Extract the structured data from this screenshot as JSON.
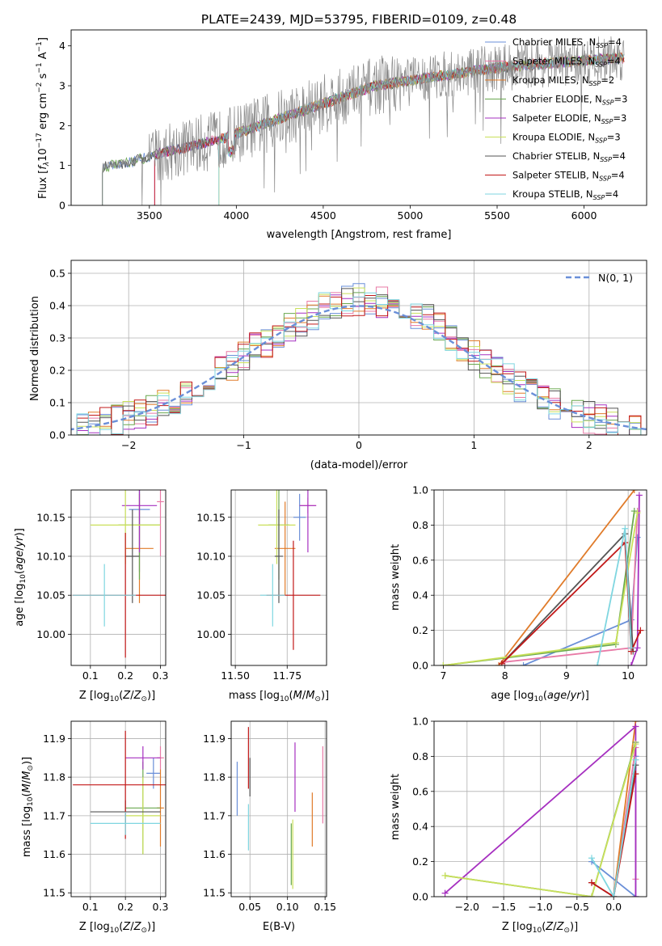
{
  "colors": {
    "Chabrier MILES": "#6a8fd8",
    "Salpeter MILES": "#e87aa6",
    "Kroupa MILES": "#e07b2a",
    "Chabrier ELODIE": "#6aa84f",
    "Salpeter ELODIE": "#a630c0",
    "Kroupa ELODIE": "#c9e05a",
    "Chabrier STELIB": "#555555",
    "Salpeter STELIB": "#c21818",
    "Kroupa STELIB": "#7fd6e0",
    "gaussian": "#6a8fd8"
  },
  "chart_data": [
    {
      "id": "spectrum",
      "type": "line",
      "title": "PLATE=2439, MJD=53795, FIBERID=0109, z=0.48",
      "xlabel": "wavelength [Angstrom, rest frame]",
      "ylabel": "Flux [fλ10⁻¹⁷ erg cm⁻² s⁻¹ A⁻¹]",
      "xlim": [
        3050,
        6360
      ],
      "ylim": [
        0,
        4.4
      ],
      "x_ticks": [
        "3500",
        "4000",
        "4500",
        "5000",
        "5500",
        "6000"
      ],
      "y_ticks": [
        "0",
        "1",
        "2",
        "3",
        "4"
      ],
      "grid": false,
      "legend_position": "top-right",
      "legend": [
        {
          "name": "Chabrier MILES, N",
          "sub": "SSP",
          "tail": "=4"
        },
        {
          "name": "Salpeter MILES, N",
          "sub": "SSP",
          "tail": "=4"
        },
        {
          "name": "Kroupa MILES, N",
          "sub": "SSP",
          "tail": "=2"
        },
        {
          "name": "Chabrier ELODIE, N",
          "sub": "SSP",
          "tail": "=3"
        },
        {
          "name": "Salpeter ELODIE, N",
          "sub": "SSP",
          "tail": "=3"
        },
        {
          "name": "Kroupa ELODIE, N",
          "sub": "SSP",
          "tail": "=3"
        },
        {
          "name": "Chabrier STELIB, N",
          "sub": "SSP",
          "tail": "=4"
        },
        {
          "name": "Salpeter STELIB, N",
          "sub": "SSP",
          "tail": "=4"
        },
        {
          "name": "Kroupa STELIB, N",
          "sub": "SSP",
          "tail": "=4"
        }
      ],
      "observed_trend": {
        "x": [
          3230,
          3400,
          3600,
          3900,
          4200,
          4500,
          4800,
          5100,
          5500,
          5900,
          6230
        ],
        "y": [
          0.95,
          1.1,
          1.35,
          1.65,
          2.1,
          2.55,
          3.0,
          3.2,
          3.45,
          3.6,
          3.7
        ]
      },
      "model_starts": [
        3230,
        3530,
        3900,
        3230,
        3530,
        3900,
        3230,
        3530,
        3900
      ]
    },
    {
      "id": "residuals",
      "type": "line",
      "xlabel": "(data-model)/error",
      "ylabel": "Normed distribution",
      "xlim": [
        -2.5,
        2.5
      ],
      "ylim": [
        0,
        0.54
      ],
      "x_ticks": [
        "−2",
        "−1",
        "0",
        "1",
        "2"
      ],
      "y_ticks": [
        "0.0",
        "0.1",
        "0.2",
        "0.3",
        "0.4",
        "0.5"
      ],
      "grid": true,
      "legend_position": "top-right",
      "gaussian_label": "N(0, 1)"
    },
    {
      "id": "age_vs_Z",
      "type": "scatter",
      "xlabel": "Z [log10(Z/Z⊙)]",
      "ylabel": "age  [log10(age/yr)]",
      "xlim": [
        0.045,
        0.315
      ],
      "ylim": [
        9.96,
        10.185
      ],
      "x_ticks": [
        "0.1",
        "0.2",
        "0.3"
      ],
      "y_ticks": [
        "10.00",
        "10.05",
        "10.10",
        "10.15"
      ],
      "points": [
        {
          "model": "Chabrier MILES",
          "x": 0.24,
          "y": 10.16,
          "xerr": 0.03,
          "yerr": 0.08
        },
        {
          "model": "Salpeter MILES",
          "x": 0.3,
          "y": 10.17,
          "xerr": 0.01,
          "yerr": 0.07
        },
        {
          "model": "Kroupa MILES",
          "x": 0.24,
          "y": 10.11,
          "xerr": 0.04,
          "yerr": 0.07
        },
        {
          "model": "Chabrier ELODIE",
          "x": 0.24,
          "y": 10.14,
          "xerr": 0.06,
          "yerr": 0.07
        },
        {
          "model": "Salpeter ELODIE",
          "x": 0.24,
          "y": 10.165,
          "xerr": 0.05,
          "yerr": 0.06
        },
        {
          "model": "Kroupa ELODIE",
          "x": 0.2,
          "y": 10.14,
          "xerr": 0.1,
          "yerr": 0.05
        },
        {
          "model": "Chabrier STELIB",
          "x": 0.22,
          "y": 10.1,
          "xerr": 0.02,
          "yerr": 0.06
        },
        {
          "model": "Salpeter STELIB",
          "x": 0.2,
          "y": 10.05,
          "xerr": 0.15,
          "yerr": 0.08
        },
        {
          "model": "Kroupa STELIB",
          "x": 0.14,
          "y": 10.05,
          "xerr": 0.09,
          "yerr": 0.04
        }
      ]
    },
    {
      "id": "age_vs_mass",
      "type": "scatter",
      "xlabel": "mass [log10(M/M⊙)]",
      "ylabel": "",
      "xlim": [
        11.48,
        11.94
      ],
      "ylim": [
        9.96,
        10.185
      ],
      "x_ticks": [
        "11.50",
        "11.75"
      ],
      "y_ticks": [
        "10.00",
        "10.05",
        "10.10",
        "10.15"
      ],
      "points": [
        {
          "model": "Chabrier MILES",
          "x": 11.81,
          "y": 10.15,
          "xerr": 0.03,
          "yerr": 0.03
        },
        {
          "model": "Salpeter MILES",
          "x": 11.85,
          "y": 10.165,
          "xerr": 0.04,
          "yerr": 0.01
        },
        {
          "model": "Kroupa MILES",
          "x": 11.74,
          "y": 10.11,
          "xerr": 0.05,
          "yerr": 0.06
        },
        {
          "model": "Chabrier ELODIE",
          "x": 11.71,
          "y": 10.14,
          "xerr": 0.05,
          "yerr": 0.07
        },
        {
          "model": "Salpeter ELODIE",
          "x": 11.85,
          "y": 10.165,
          "xerr": 0.04,
          "yerr": 0.06
        },
        {
          "model": "Kroupa ELODIE",
          "x": 11.7,
          "y": 10.14,
          "xerr": 0.09,
          "yerr": 0.05
        },
        {
          "model": "Chabrier STELIB",
          "x": 11.71,
          "y": 10.1,
          "xerr": 0.02,
          "yerr": 0.06
        },
        {
          "model": "Salpeter STELIB",
          "x": 11.78,
          "y": 10.05,
          "xerr": 0.13,
          "yerr": 0.07
        },
        {
          "model": "Kroupa STELIB",
          "x": 11.68,
          "y": 10.05,
          "xerr": 0.06,
          "yerr": 0.04
        }
      ]
    },
    {
      "id": "mass_weight_vs_age",
      "type": "line",
      "xlabel": "age  [log10(age/yr)]",
      "ylabel": "mass weight",
      "xlim": [
        6.85,
        10.3
      ],
      "ylim": [
        0,
        1
      ],
      "x_ticks": [
        "7",
        "8",
        "9",
        "10"
      ],
      "y_ticks": [
        "0.0",
        "0.2",
        "0.4",
        "0.6",
        "0.8",
        "1.0"
      ],
      "grid": true,
      "series": [
        {
          "model": "Chabrier MILES",
          "x": [
            8.3,
            10.05,
            10.15
          ],
          "y": [
            0.0,
            0.26,
            0.73
          ]
        },
        {
          "model": "Salpeter MILES",
          "x": [
            8.0,
            10.05,
            10.15
          ],
          "y": [
            0.02,
            0.1,
            0.88
          ]
        },
        {
          "model": "Kroupa MILES",
          "x": [
            7.9,
            10.1
          ],
          "y": [
            0.0,
            1.0
          ]
        },
        {
          "model": "Chabrier ELODIE",
          "x": [
            7.0,
            9.8,
            10.1
          ],
          "y": [
            0.0,
            0.12,
            0.88
          ]
        },
        {
          "model": "Salpeter ELODIE",
          "x": [
            10.05,
            10.15,
            10.18
          ],
          "y": [
            0.0,
            0.1,
            0.97
          ]
        },
        {
          "model": "Kroupa ELODIE",
          "x": [
            7.0,
            9.8,
            10.15
          ],
          "y": [
            0.0,
            0.13,
            0.87
          ]
        },
        {
          "model": "Chabrier STELIB",
          "x": [
            7.95,
            9.95,
            10.08
          ],
          "y": [
            0.01,
            0.75,
            0.08
          ]
        },
        {
          "model": "Salpeter STELIB",
          "x": [
            7.95,
            9.95,
            10.05,
            10.2
          ],
          "y": [
            0.01,
            0.7,
            0.08,
            0.2
          ]
        },
        {
          "model": "Kroupa STELIB",
          "x": [
            9.5,
            9.95,
            10.05
          ],
          "y": [
            0.0,
            0.78,
            0.1
          ]
        }
      ]
    },
    {
      "id": "mass_vs_Z",
      "type": "scatter",
      "xlabel": "Z [log10(Z/Z⊙)]",
      "ylabel": "mass [log10(M/M⊙)]",
      "xlim": [
        0.045,
        0.315
      ],
      "ylim": [
        11.49,
        11.945
      ],
      "x_ticks": [
        "0.1",
        "0.2",
        "0.3"
      ],
      "y_ticks": [
        "11.5",
        "11.6",
        "11.7",
        "11.8",
        "11.9"
      ],
      "points": [
        {
          "model": "Chabrier MILES",
          "x": 0.28,
          "y": 11.81,
          "xerr": 0.02,
          "yerr": 0.04
        },
        {
          "model": "Salpeter MILES",
          "x": 0.3,
          "y": 11.85,
          "xerr": 0.01,
          "yerr": 0.03
        },
        {
          "model": "Kroupa MILES",
          "x": 0.3,
          "y": 11.72,
          "xerr": 0.01,
          "yerr": 0.1
        },
        {
          "model": "Chabrier ELODIE",
          "x": 0.25,
          "y": 11.72,
          "xerr": 0.05,
          "yerr": 0.12
        },
        {
          "model": "Salpeter ELODIE",
          "x": 0.25,
          "y": 11.85,
          "xerr": 0.05,
          "yerr": 0.03
        },
        {
          "model": "Kroupa ELODIE",
          "x": 0.25,
          "y": 11.7,
          "xerr": 0.05,
          "yerr": 0.1
        },
        {
          "model": "Chabrier STELIB",
          "x": 0.2,
          "y": 11.71,
          "xerr": 0.1,
          "yerr": 0.03
        },
        {
          "model": "Salpeter STELIB",
          "x": 0.2,
          "y": 11.78,
          "xerr": 0.15,
          "yerr": 0.14
        },
        {
          "model": "Kroupa STELIB",
          "x": 0.2,
          "y": 11.68,
          "xerr": 0.1,
          "yerr": 0.03
        }
      ]
    },
    {
      "id": "mass_vs_ebv",
      "type": "scatter",
      "xlabel": "E(B-V)",
      "ylabel": "",
      "xlim": [
        0.025,
        0.152
      ],
      "ylim": [
        11.49,
        11.945
      ],
      "x_ticks": [
        "0.05",
        "0.10",
        "0.15"
      ],
      "y_ticks": [
        "11.5",
        "11.6",
        "11.7",
        "11.8",
        "11.9"
      ],
      "points": [
        {
          "model": "Chabrier MILES",
          "x": 0.033,
          "y": 11.77,
          "yerr": 0.07
        },
        {
          "model": "Salpeter MILES",
          "x": 0.147,
          "y": 11.78,
          "yerr": 0.1
        },
        {
          "model": "Kroupa MILES",
          "x": 0.133,
          "y": 11.69,
          "yerr": 0.07
        },
        {
          "model": "Chabrier ELODIE",
          "x": 0.105,
          "y": 11.6,
          "yerr": 0.08
        },
        {
          "model": "Salpeter ELODIE",
          "x": 0.11,
          "y": 11.8,
          "yerr": 0.09
        },
        {
          "model": "Kroupa ELODIE",
          "x": 0.107,
          "y": 11.6,
          "yerr": 0.09
        },
        {
          "model": "Chabrier STELIB",
          "x": 0.05,
          "y": 11.8,
          "yerr": 0.05
        },
        {
          "model": "Salpeter STELIB",
          "x": 0.048,
          "y": 11.85,
          "yerr": 0.08
        },
        {
          "model": "Kroupa STELIB",
          "x": 0.048,
          "y": 11.67,
          "yerr": 0.06
        }
      ]
    },
    {
      "id": "mass_weight_vs_Z",
      "type": "line",
      "xlabel": "Z [log10(Z/Z⊙)]",
      "ylabel": "mass weight",
      "xlim": [
        -2.45,
        0.45
      ],
      "ylim": [
        0,
        1
      ],
      "x_ticks": [
        "−2.0",
        "−1.5",
        "−1.0",
        "−0.5",
        "0.0"
      ],
      "y_ticks": [
        "0.0",
        "0.2",
        "0.4",
        "0.6",
        "0.8",
        "1.0"
      ],
      "grid": true,
      "series": [
        {
          "model": "Chabrier MILES",
          "x": [
            -0.3,
            0.3,
            0.3
          ],
          "y": [
            0.2,
            0.0,
            0.8
          ]
        },
        {
          "model": "Salpeter MILES",
          "x": [
            0.0,
            0.3,
            0.3
          ],
          "y": [
            0.0,
            0.85,
            0.1
          ]
        },
        {
          "model": "Kroupa MILES",
          "x": [
            0.0,
            0.3
          ],
          "y": [
            0.0,
            1.0
          ]
        },
        {
          "model": "Chabrier ELODIE",
          "x": [
            -2.3,
            -0.3,
            0.3
          ],
          "y": [
            0.12,
            0.0,
            0.88
          ]
        },
        {
          "model": "Salpeter ELODIE",
          "x": [
            -2.3,
            0.3,
            0.3
          ],
          "y": [
            0.02,
            0.97,
            0.0
          ]
        },
        {
          "model": "Kroupa ELODIE",
          "x": [
            -2.3,
            -0.3,
            0.3
          ],
          "y": [
            0.12,
            0.0,
            0.87
          ]
        },
        {
          "model": "Chabrier STELIB",
          "x": [
            -0.3,
            0.0,
            0.3
          ],
          "y": [
            0.08,
            0.0,
            0.75
          ]
        },
        {
          "model": "Salpeter STELIB",
          "x": [
            -0.3,
            0.0,
            0.3
          ],
          "y": [
            0.08,
            0.0,
            0.7
          ]
        },
        {
          "model": "Kroupa STELIB",
          "x": [
            -0.3,
            0.0,
            0.3
          ],
          "y": [
            0.22,
            0.0,
            0.78
          ]
        }
      ]
    }
  ]
}
